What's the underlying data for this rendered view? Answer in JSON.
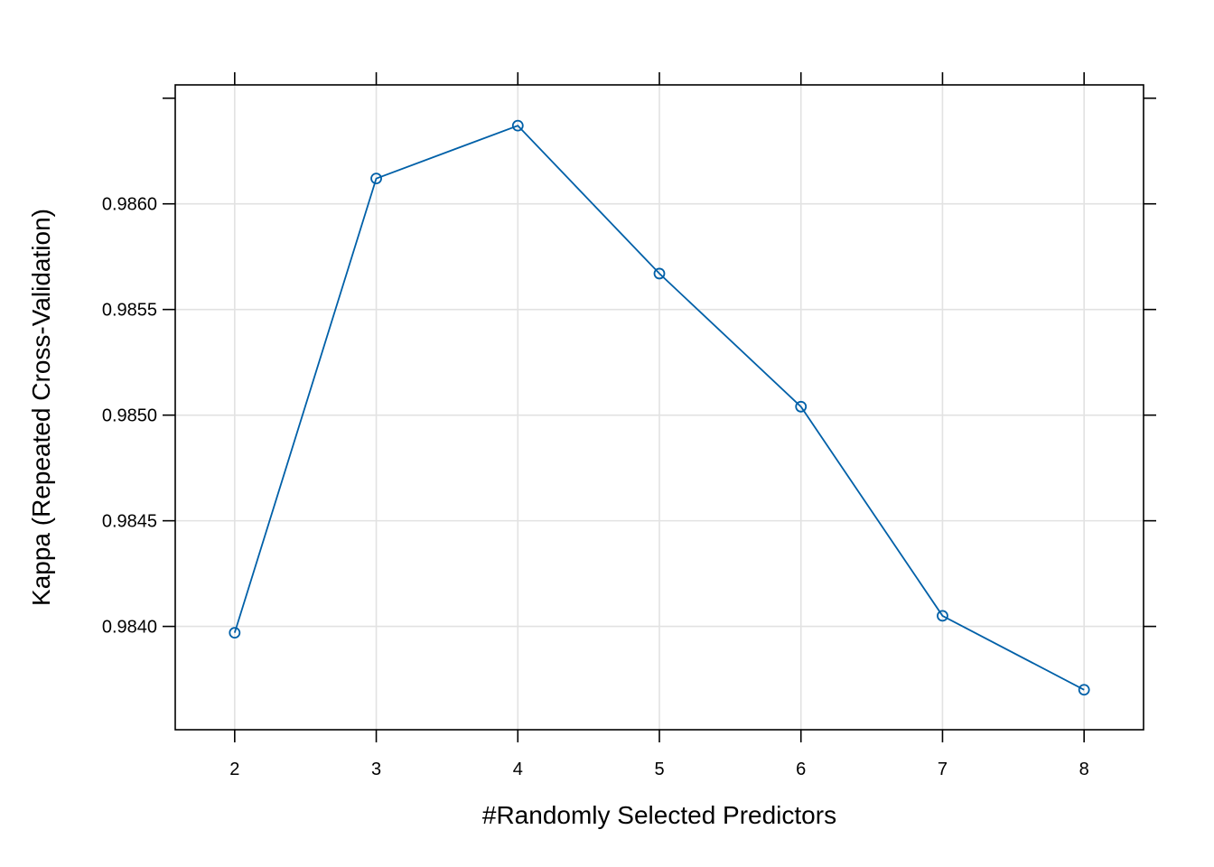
{
  "chart_data": {
    "type": "line",
    "title": "",
    "xlabel": "#Randomly Selected Predictors",
    "ylabel": "Kappa (Repeated Cross-Validation)",
    "x": [
      2,
      3,
      4,
      5,
      6,
      7,
      8
    ],
    "series": [
      {
        "name": "Kappa",
        "values": [
          0.98397,
          0.98612,
          0.98637,
          0.98567,
          0.98504,
          0.98405,
          0.9837
        ]
      }
    ],
    "xticks": [
      2,
      3,
      4,
      5,
      6,
      7,
      8
    ],
    "xtick_labels": [
      "2",
      "3",
      "4",
      "5",
      "6",
      "7",
      "8"
    ],
    "yticks": [
      0.984,
      0.9845,
      0.985,
      0.9855,
      0.986
    ],
    "ytick_labels": [
      "0.9840",
      "0.9845",
      "0.9850",
      "0.9855",
      "0.9860"
    ],
    "xlim": [
      1.58,
      8.42
    ],
    "ylim": [
      0.983511,
      0.986563
    ],
    "grid": true,
    "line_color": "#0060a8",
    "grid_color": "#e2e2e2",
    "axis_color": "#000000"
  }
}
